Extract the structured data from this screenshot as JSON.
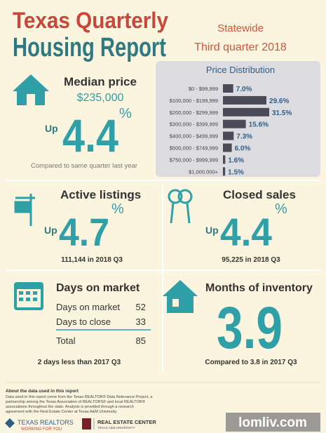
{
  "header": {
    "title_line1": "Texas Quarterly",
    "title_line2": "Housing Report",
    "region": "Statewide",
    "period": "Third quarter 2018"
  },
  "median_price": {
    "label": "Median price",
    "price": "$235,000",
    "direction": "Up",
    "change": "4.4",
    "unit": "%",
    "note": "Compared to same quarter last year"
  },
  "chart_data": {
    "type": "bar",
    "orientation": "horizontal",
    "title": "Price Distribution",
    "categories": [
      "$0 - $99,999",
      "$100,000 - $199,999",
      "$200,000 - $299,999",
      "$300,000 - $399,999",
      "$400,000 - $499,999",
      "$500,000 - $749,999",
      "$750,000 - $999,999",
      "$1,000,000+"
    ],
    "values": [
      7.0,
      29.6,
      31.5,
      15.6,
      7.3,
      6.0,
      1.6,
      1.5
    ],
    "value_labels": [
      "7.0%",
      "29.6%",
      "31.5%",
      "15.6%",
      "7.3%",
      "6.0%",
      "1.6%",
      "1.5%"
    ],
    "color": "#4a4a58"
  },
  "active_listings": {
    "label": "Active listings",
    "direction": "Up",
    "change": "4.7",
    "unit": "%",
    "note": "111,144 in 2018 Q3"
  },
  "closed_sales": {
    "label": "Closed sales",
    "direction": "Up",
    "change": "4.4",
    "unit": "%",
    "note": "95,225 in 2018 Q3"
  },
  "days_on_market": {
    "label": "Days on market",
    "rows": [
      [
        "Days on market",
        "52"
      ],
      [
        "Days to close",
        "33"
      ],
      [
        "Total",
        "85"
      ]
    ],
    "note": "2 days less than 2017 Q3"
  },
  "months_of_inventory": {
    "label": "Months of inventory",
    "value": "3.9",
    "note": "Compared to 3.8 in 2017 Q3"
  },
  "footer": {
    "heading": "About the data used in this report",
    "body_lines": [
      "Data used in this report come from the Texas REALTOR® Data Relevance Project, a",
      "partnership among the Texas Association of REALTORS® and local REALTOR®",
      "associations throughout the state. Analysis is provided through a research",
      "agreement with the Real Estate Center at Texas A&M University."
    ],
    "logo1_name": "TEXAS REALTORS",
    "logo1_tagline": "WORKING FOR YOU",
    "logo2_name": "REAL ESTATE CENTER",
    "logo2_tagline": "TEXAS A&M UNIVERSITY"
  },
  "watermark": "lomliv.com"
}
